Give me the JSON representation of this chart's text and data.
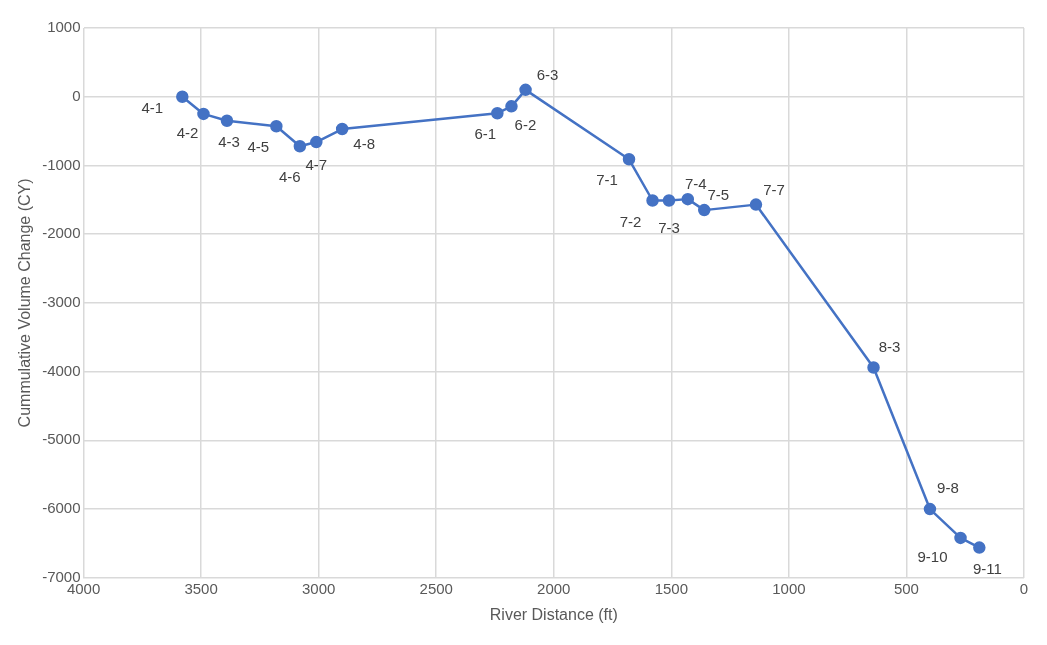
{
  "chart_data": {
    "type": "line",
    "xlabel": "River Distance (ft)",
    "ylabel": "Cummulative Volume Change (CY)",
    "xlim": [
      4000,
      0
    ],
    "xticks": [
      4000,
      3500,
      3000,
      2500,
      2000,
      1500,
      1000,
      500,
      0
    ],
    "ylim": [
      -7000,
      1000
    ],
    "yticks": [
      1000,
      0,
      -1000,
      -2000,
      -3000,
      -4000,
      -5000,
      -6000,
      -7000
    ],
    "grid": true,
    "marker": "circle",
    "line_style": "solid",
    "series": [
      {
        "color": "#4472c4",
        "x": [
          3580,
          3490,
          3390,
          3180,
          3080,
          3010,
          2900,
          2240,
          2180,
          2120,
          1680,
          1580,
          1510,
          1430,
          1360,
          1140,
          640,
          400,
          270,
          190
        ],
        "values": [
          0,
          -250,
          -350,
          -430,
          -720,
          -660,
          -470,
          -240,
          -140,
          100,
          -910,
          -1510,
          -1510,
          -1490,
          -1650,
          -1570,
          -3940,
          -6000,
          -6420,
          -6560
        ]
      }
    ],
    "annotations": [
      {
        "text": "4-1",
        "x": 3580,
        "y": 0
      },
      {
        "text": "4-2",
        "x": 3490,
        "y": -250
      },
      {
        "text": "4-3",
        "x": 3390,
        "y": -350
      },
      {
        "text": "4-5",
        "x": 3180,
        "y": -430
      },
      {
        "text": "4-6",
        "x": 3080,
        "y": -720
      },
      {
        "text": "4-7",
        "x": 3010,
        "y": -660
      },
      {
        "text": "4-8",
        "x": 2900,
        "y": -470
      },
      {
        "text": "6-1",
        "x": 2240,
        "y": -240
      },
      {
        "text": "6-2",
        "x": 2180,
        "y": -140
      },
      {
        "text": "6-3",
        "x": 2120,
        "y": 100
      },
      {
        "text": "7-1",
        "x": 1680,
        "y": -910
      },
      {
        "text": "7-2",
        "x": 1580,
        "y": -1510
      },
      {
        "text": "7-3",
        "x": 1510,
        "y": -1510
      },
      {
        "text": "7-4",
        "x": 1430,
        "y": -1490
      },
      {
        "text": "7-5",
        "x": 1360,
        "y": -1650
      },
      {
        "text": "7-7",
        "x": 1140,
        "y": -1570
      },
      {
        "text": "8-3",
        "x": 640,
        "y": -3940
      },
      {
        "text": "9-8",
        "x": 400,
        "y": -6000
      },
      {
        "text": "9-10",
        "x": 270,
        "y": -6420
      },
      {
        "text": "9-11",
        "x": 190,
        "y": -6560
      }
    ]
  }
}
